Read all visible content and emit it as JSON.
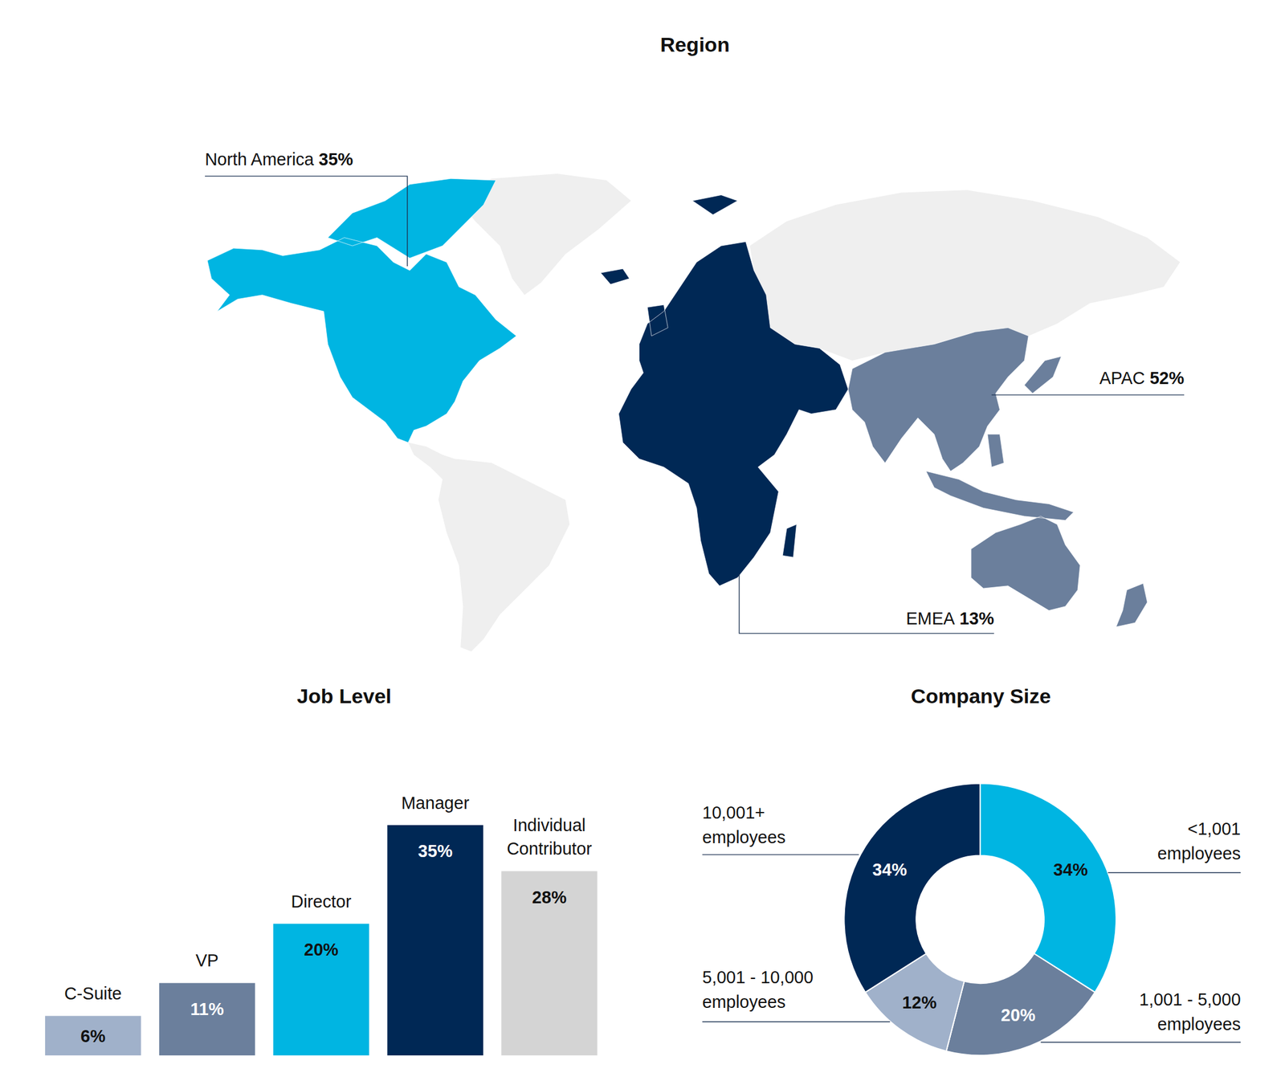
{
  "chart_data": [
    {
      "type": "map",
      "title": "Region",
      "categories": [
        "North America",
        "EMEA",
        "APAC"
      ],
      "values": [
        35,
        13,
        52
      ],
      "value_labels": [
        "35%",
        "13%",
        "52%"
      ],
      "colors": [
        "#00b5e2",
        "#002855",
        "#6b7f9c"
      ],
      "data_labels": true
    },
    {
      "type": "bar",
      "title": "Job Level",
      "categories": [
        "C-Suite",
        "VP",
        "Director",
        "Manager",
        "Individual Contributor"
      ],
      "values": [
        6,
        11,
        20,
        35,
        28
      ],
      "value_labels": [
        "6%",
        "11%",
        "20%",
        "35%",
        "28%"
      ],
      "colors": [
        "#a0b1ca",
        "#6b7f9c",
        "#00b5e2",
        "#002855",
        "#d4d4d4"
      ],
      "data_labels": true,
      "tick_labels": false
    },
    {
      "type": "donut",
      "title": "Company Size",
      "categories": [
        "<1,001 employees",
        "1,001 - 5,000 employees",
        "5,001 - 10,000 employees",
        "10,001+ employees"
      ],
      "values": [
        34,
        20,
        12,
        34
      ],
      "value_labels": [
        "34%",
        "20%",
        "12%",
        "34%"
      ],
      "colors": [
        "#00b5e2",
        "#6b7f9c",
        "#a0b1ca",
        "#002855"
      ],
      "data_labels": true
    }
  ]
}
